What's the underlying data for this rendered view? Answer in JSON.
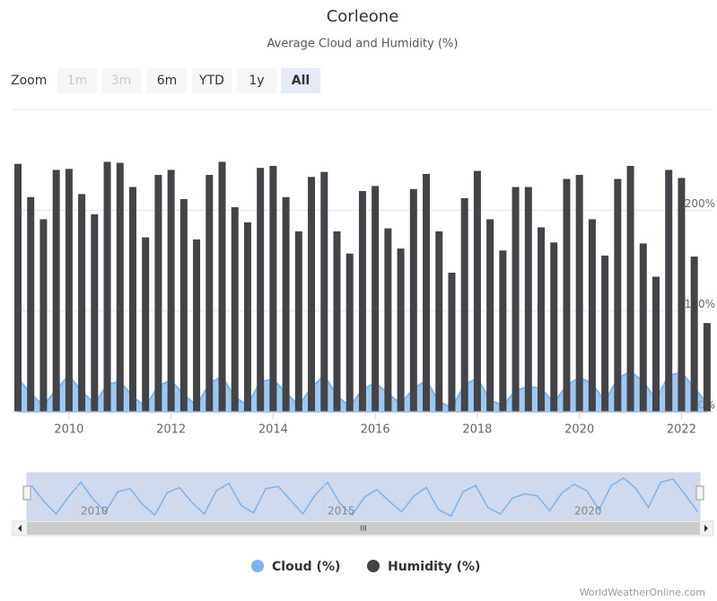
{
  "chart_data": {
    "type": "bar_area",
    "title": "Corleone",
    "subtitle": "Average Cloud and Humidity (%)",
    "zoom": {
      "label": "Zoom",
      "buttons": [
        "1m",
        "3m",
        "6m",
        "YTD",
        "1y",
        "All"
      ],
      "selected": "All",
      "disabled": [
        "1m",
        "3m"
      ]
    },
    "categories": [
      null,
      null,
      null,
      null,
      "2010",
      null,
      null,
      null,
      null,
      null,
      null,
      null,
      "2012",
      null,
      null,
      null,
      null,
      null,
      null,
      null,
      "2014",
      null,
      null,
      null,
      null,
      null,
      null,
      null,
      "2016",
      null,
      null,
      null,
      null,
      null,
      null,
      null,
      "2018",
      null,
      null,
      null,
      null,
      null,
      null,
      null,
      "2020",
      null,
      null,
      null,
      null,
      null,
      null,
      null,
      "2022",
      null,
      null
    ],
    "series": [
      {
        "name": "Cloud (%)",
        "color": "#7cb5ec",
        "type": "area",
        "values": [
          33,
          18,
          6,
          22,
          36,
          20,
          8,
          27,
          30,
          15,
          5,
          26,
          31,
          17,
          6,
          28,
          35,
          14,
          7,
          30,
          32,
          19,
          6,
          24,
          36,
          16,
          5,
          22,
          29,
          18,
          8,
          23,
          31,
          10,
          4,
          27,
          33,
          12,
          6,
          21,
          25,
          23,
          9,
          26,
          34,
          28,
          10,
          33,
          40,
          30,
          12,
          36,
          39,
          24,
          8
        ]
      },
      {
        "name": "Humidity (%)",
        "color": "#434348",
        "type": "bar",
        "values": [
          246,
          213,
          191,
          240,
          241,
          216,
          196,
          248,
          247,
          223,
          173,
          235,
          240,
          211,
          171,
          235,
          248,
          203,
          188,
          242,
          244,
          213,
          179,
          233,
          238,
          179,
          157,
          219,
          224,
          182,
          162,
          221,
          236,
          179,
          138,
          212,
          239,
          191,
          160,
          223,
          223,
          183,
          168,
          231,
          235,
          191,
          155,
          231,
          244,
          167,
          134,
          240,
          232,
          154,
          88
        ]
      }
    ],
    "ylim": [
      0,
      300
    ],
    "yticks": [
      {
        "value": 0,
        "label": "0%"
      },
      {
        "value": 100,
        "label": "100%"
      },
      {
        "value": 200,
        "label": "200%"
      }
    ],
    "grid": true,
    "navigator": {
      "labels": [
        "2010",
        "2015",
        "2020"
      ],
      "ylim": [
        0,
        45
      ],
      "scroll_label": "III"
    },
    "legend": "bottom",
    "credit": "WorldWeatherOnline.com"
  }
}
